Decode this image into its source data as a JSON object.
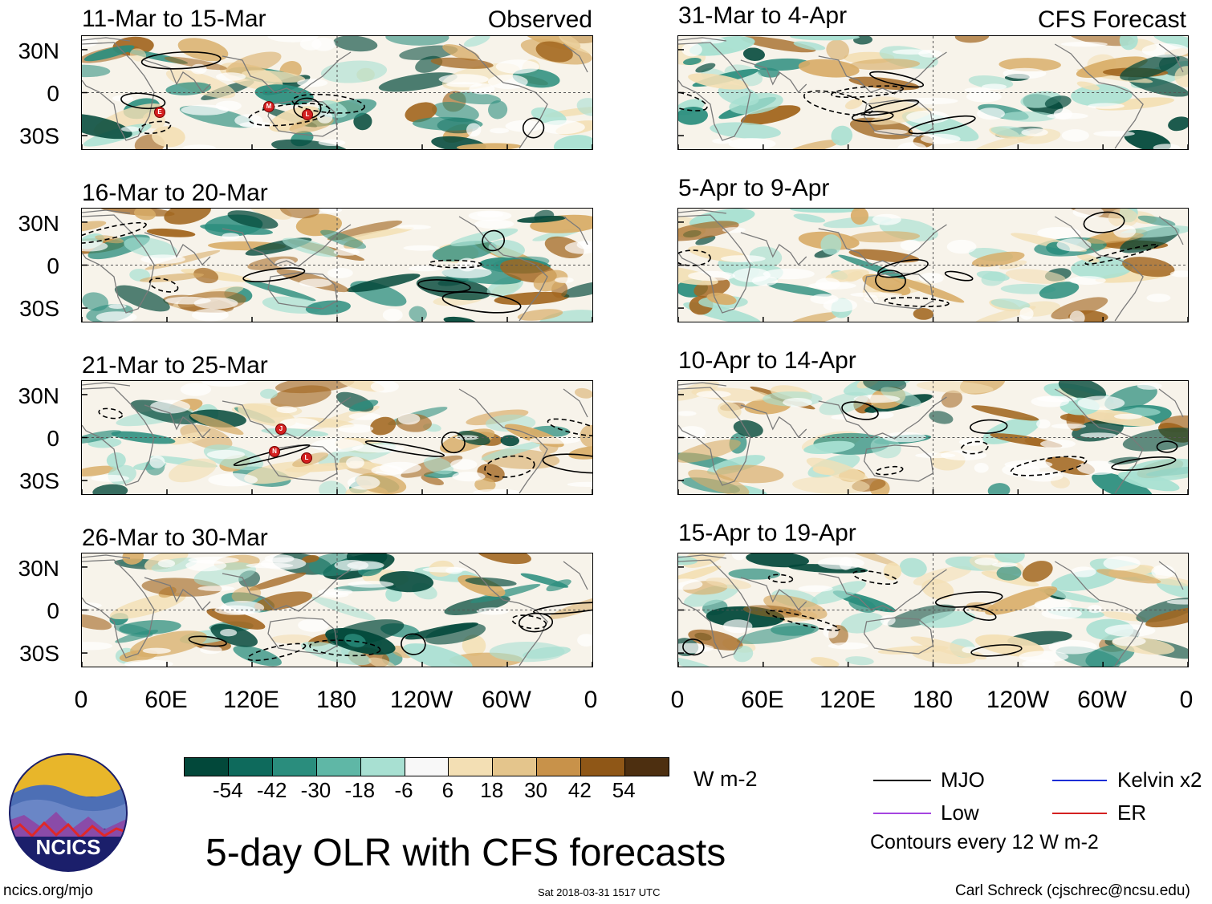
{
  "colors": {
    "wet_strong": "#02483a",
    "wet_mid": "#2a8d7d",
    "wet_light": "#a8e0d2",
    "dry_light": "#f3dfb4",
    "dry_mid": "#d8ad68",
    "dry_strong": "#a2661f",
    "mjo": "#000000",
    "kelvin": "#1a2dd6",
    "low": "#a544e0",
    "er": "#d42020",
    "coast": "#7a7a7a"
  },
  "left_column": {
    "tag": "Observed",
    "panels": [
      {
        "title": "11-Mar to 15-Mar"
      },
      {
        "title": "16-Mar to 20-Mar"
      },
      {
        "title": "21-Mar to 25-Mar"
      },
      {
        "title": "26-Mar to 30-Mar"
      }
    ]
  },
  "right_column": {
    "tag": "CFS Forecast",
    "panels": [
      {
        "title": "31-Mar to 4-Apr"
      },
      {
        "title": "5-Apr to 9-Apr"
      },
      {
        "title": "10-Apr to 14-Apr"
      },
      {
        "title": "15-Apr to 19-Apr"
      }
    ]
  },
  "lat_labels": [
    "30N",
    "0",
    "30S"
  ],
  "lon_labels": [
    "0",
    "60E",
    "120E",
    "180",
    "120W",
    "60W",
    "0"
  ],
  "colorbar": {
    "ticks": [
      "-54",
      "-42",
      "-30",
      "-18",
      "-6",
      "6",
      "18",
      "30",
      "42",
      "54"
    ],
    "colors": [
      "#02483a",
      "#0e6a5c",
      "#2a8d7d",
      "#5fb7a6",
      "#a8e0d2",
      "#f8f8f8",
      "#f3dfb4",
      "#e4c58c",
      "#c8924a",
      "#8f5717",
      "#4d2f10"
    ],
    "units": "W m-2"
  },
  "legend": {
    "items": [
      {
        "label": "MJO",
        "color": "#000000"
      },
      {
        "label": "Kelvin x2",
        "color": "#1a2dd6"
      },
      {
        "label": "Low",
        "color": "#a544e0"
      },
      {
        "label": "ER",
        "color": "#d42020"
      }
    ],
    "note": "Contours every 12 W m-2"
  },
  "main_title": "5-day OLR with CFS forecasts",
  "logo": {
    "text": "NCICS"
  },
  "footer": {
    "url": "ncics.org/mjo",
    "timestamp": "Sat 2018-03-31 1517 UTC",
    "author": "Carl Schreck (cjschrec@ncsu.edu)"
  },
  "storm_markers": [
    {
      "panel": 0,
      "letter": "E"
    },
    {
      "panel": 0,
      "letter": "M"
    },
    {
      "panel": 0,
      "letter": "L"
    },
    {
      "panel": 2,
      "letter": "J"
    },
    {
      "panel": 2,
      "letter": "N"
    },
    {
      "panel": 2,
      "letter": "L"
    }
  ]
}
